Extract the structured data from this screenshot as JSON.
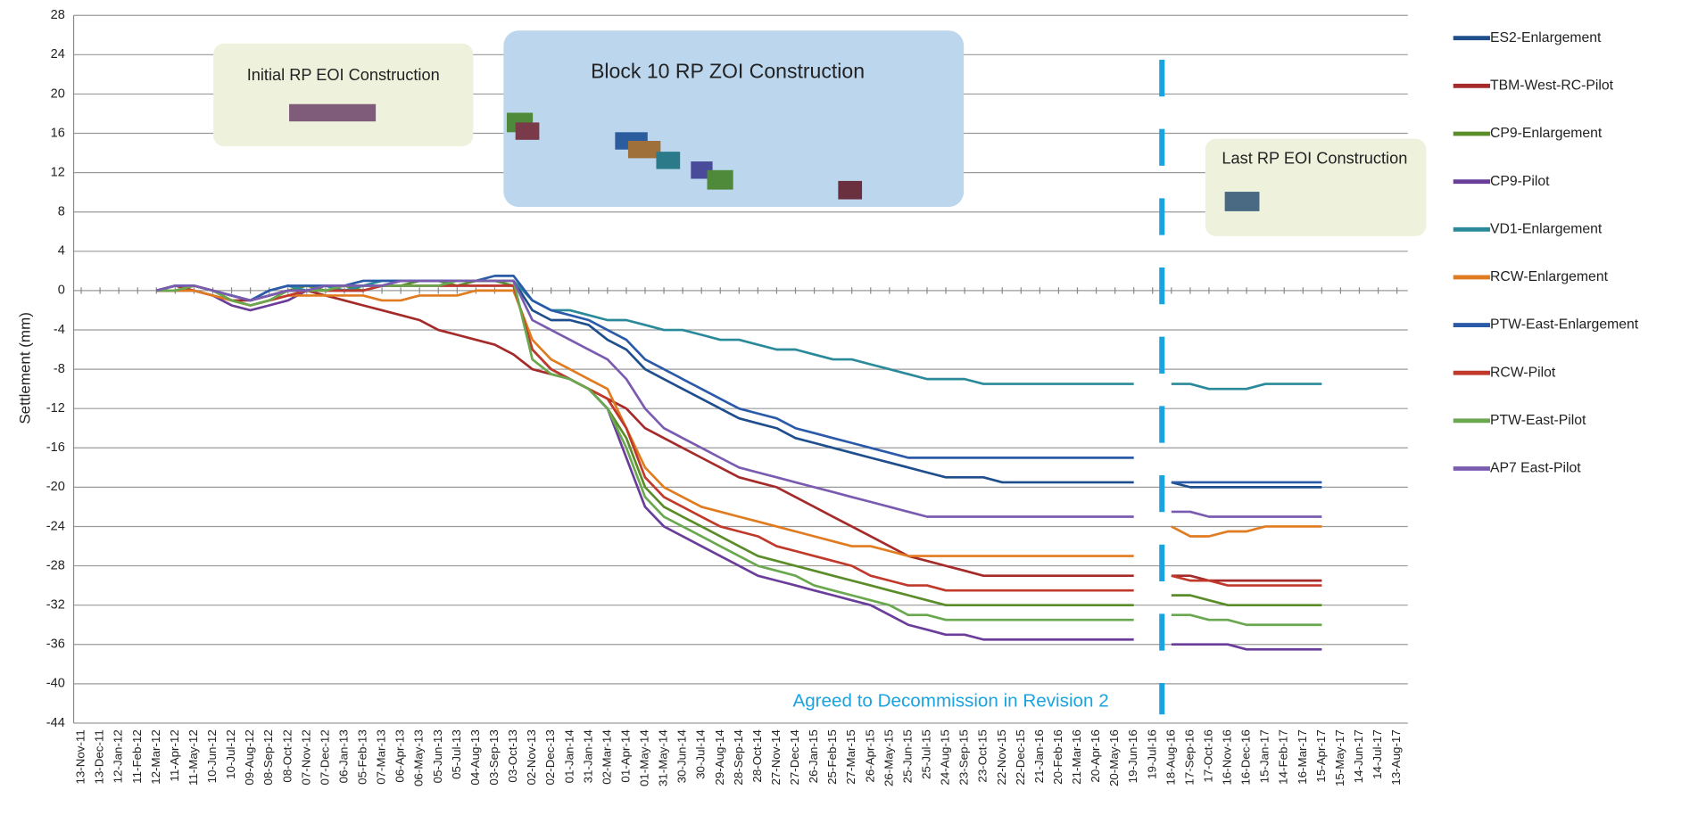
{
  "chart_data": {
    "type": "line",
    "y_label": "Settlement (mm)",
    "ylim": [
      -44,
      28
    ],
    "yticks": [
      -44,
      -40,
      -36,
      -32,
      -28,
      -24,
      -20,
      -16,
      -12,
      -8,
      -4,
      0,
      4,
      8,
      12,
      16,
      20,
      24,
      28
    ],
    "grid": true,
    "legend": "right",
    "annotations": [
      "Initial RP EOI Construction",
      "Block 10 RP ZOI Construction",
      "Last RP EOI Construction",
      "Agreed to Decommission in Revision 2"
    ],
    "categories": [
      "13-Nov-11",
      "13-Dec-11",
      "12-Jan-12",
      "11-Feb-12",
      "12-Mar-12",
      "11-Apr-12",
      "11-May-12",
      "10-Jun-12",
      "10-Jul-12",
      "09-Aug-12",
      "08-Sep-12",
      "08-Oct-12",
      "07-Nov-12",
      "07-Dec-12",
      "06-Jan-13",
      "05-Feb-13",
      "07-Mar-13",
      "06-Apr-13",
      "06-May-13",
      "05-Jun-13",
      "05-Jul-13",
      "04-Aug-13",
      "03-Sep-13",
      "03-Oct-13",
      "02-Nov-13",
      "02-Dec-13",
      "01-Jan-14",
      "31-Jan-14",
      "02-Mar-14",
      "01-Apr-14",
      "01-May-14",
      "31-May-14",
      "30-Jun-14",
      "30-Jul-14",
      "29-Aug-14",
      "28-Sep-14",
      "28-Oct-14",
      "27-Nov-14",
      "27-Dec-14",
      "26-Jan-15",
      "25-Feb-15",
      "27-Mar-15",
      "26-Apr-15",
      "26-May-15",
      "25-Jun-15",
      "25-Jul-15",
      "24-Aug-15",
      "23-Sep-15",
      "23-Oct-15",
      "22-Nov-15",
      "22-Dec-15",
      "21-Jan-16",
      "20-Feb-16",
      "21-Mar-16",
      "20-Apr-16",
      "20-May-16",
      "19-Jun-16",
      "19-Jul-16",
      "18-Aug-16",
      "17-Sep-16",
      "17-Oct-16",
      "16-Nov-16",
      "16-Dec-16",
      "15-Jan-17",
      "14-Feb-17",
      "16-Mar-17",
      "15-Apr-17",
      "15-May-17",
      "14-Jun-17",
      "14-Jul-17",
      "13-Aug-17"
    ],
    "series": [
      {
        "name": "ES2-Enlargement",
        "color": "#1f4e8c",
        "values": [
          null,
          null,
          null,
          null,
          0,
          0.5,
          0.5,
          0,
          -0.5,
          -1,
          -0.5,
          0,
          0,
          0.5,
          0,
          0.5,
          0.5,
          1,
          1,
          1,
          1,
          1,
          1,
          1,
          -2,
          -3,
          -3,
          -3.5,
          -5,
          -6,
          -8,
          -9,
          -10,
          -11,
          -12,
          -13,
          -13.5,
          -14,
          -15,
          -15.5,
          -16,
          -16.5,
          -17,
          -17.5,
          -18,
          -18.5,
          -19,
          -19,
          -19,
          -19.5,
          -19.5,
          -19.5,
          -19.5,
          -19.5,
          -19.5,
          -19.5,
          -19.5,
          null,
          -19.5,
          -20,
          -20,
          -20,
          -20,
          -20,
          -20,
          -20,
          -20,
          null,
          null,
          null,
          null
        ]
      },
      {
        "name": "TBM-West-RC-Pilot",
        "color": "#a52a2a",
        "values": [
          null,
          null,
          null,
          null,
          0,
          0.5,
          0,
          -0.5,
          -1,
          -1,
          -0.5,
          0,
          0,
          -0.5,
          -1,
          -1.5,
          -2,
          -2.5,
          -3,
          -4,
          -4.5,
          -5,
          -5.5,
          -6.5,
          -8,
          -8.5,
          -9,
          -10,
          -11,
          -12,
          -14,
          -15,
          -16,
          -17,
          -18,
          -19,
          -19.5,
          -20,
          -21,
          -22,
          -23,
          -24,
          -25,
          -26,
          -27,
          -27.5,
          -28,
          -28.5,
          -29,
          -29,
          -29,
          -29,
          -29,
          -29,
          -29,
          -29,
          -29,
          null,
          -29,
          -29,
          -29.5,
          -29.5,
          -29.5,
          -29.5,
          -29.5,
          -29.5,
          -29.5,
          null,
          null,
          null,
          null
        ]
      },
      {
        "name": "CP9-Enlargement",
        "color": "#5b8c2a",
        "values": [
          null,
          null,
          null,
          null,
          0,
          0,
          0.5,
          0,
          -1,
          -1.5,
          -1,
          0,
          0.5,
          0,
          0.5,
          0,
          0.5,
          0.5,
          1,
          1,
          0.5,
          1,
          1,
          0.5,
          -6,
          -8,
          -9,
          -10,
          -12,
          -15,
          -20,
          -22,
          -23,
          -24,
          -25,
          -26,
          -27,
          -27.5,
          -28,
          -28.5,
          -29,
          -29.5,
          -30,
          -30.5,
          -31,
          -31.5,
          -32,
          -32,
          -32,
          -32,
          -32,
          -32,
          -32,
          -32,
          -32,
          -32,
          -32,
          null,
          -31,
          -31,
          -31.5,
          -32,
          -32,
          -32,
          -32,
          -32,
          -32,
          null,
          null,
          null,
          null
        ]
      },
      {
        "name": "CP9-Pilot",
        "color": "#6a3d9a",
        "values": [
          null,
          null,
          null,
          null,
          0,
          0,
          0,
          -0.5,
          -1.5,
          -2,
          -1.5,
          -1,
          0,
          0,
          0,
          0,
          0.5,
          0.5,
          0.5,
          0.5,
          0.5,
          0.5,
          0.5,
          0.5,
          -6,
          -8,
          -9,
          -10,
          -12,
          -17,
          -22,
          -24,
          -25,
          -26,
          -27,
          -28,
          -29,
          -29.5,
          -30,
          -30.5,
          -31,
          -31.5,
          -32,
          -33,
          -34,
          -34.5,
          -35,
          -35,
          -35.5,
          -35.5,
          -35.5,
          -35.5,
          -35.5,
          -35.5,
          -35.5,
          -35.5,
          -35.5,
          null,
          -36,
          -36,
          -36,
          -36,
          -36.5,
          -36.5,
          -36.5,
          -36.5,
          -36.5,
          null,
          null,
          null,
          null
        ]
      },
      {
        "name": "VD1-Enlargement",
        "color": "#2a8a9a",
        "values": [
          null,
          null,
          null,
          null,
          0,
          0.5,
          0.5,
          0,
          -0.5,
          -1,
          0,
          0.5,
          0,
          0.5,
          0,
          0.5,
          1,
          1,
          1,
          1,
          1,
          1,
          1,
          1,
          -1,
          -2,
          -2,
          -2.5,
          -3,
          -3,
          -3.5,
          -4,
          -4,
          -4.5,
          -5,
          -5,
          -5.5,
          -6,
          -6,
          -6.5,
          -7,
          -7,
          -7.5,
          -8,
          -8.5,
          -9,
          -9,
          -9,
          -9.5,
          -9.5,
          -9.5,
          -9.5,
          -9.5,
          -9.5,
          -9.5,
          -9.5,
          -9.5,
          null,
          -9.5,
          -9.5,
          -10,
          -10,
          -10,
          -9.5,
          -9.5,
          -9.5,
          -9.5,
          null,
          null,
          null,
          null
        ]
      },
      {
        "name": "RCW-Enlargement",
        "color": "#e07b20",
        "values": [
          null,
          null,
          null,
          null,
          0,
          0,
          0,
          -0.5,
          -1,
          -1.5,
          -1,
          -0.5,
          -0.5,
          -0.5,
          -0.5,
          -0.5,
          -1,
          -1,
          -0.5,
          -0.5,
          -0.5,
          0,
          0,
          0,
          -5,
          -7,
          -8,
          -9,
          -10,
          -14,
          -18,
          -20,
          -21,
          -22,
          -22.5,
          -23,
          -23.5,
          -24,
          -24.5,
          -25,
          -25.5,
          -26,
          -26,
          -26.5,
          -27,
          -27,
          -27,
          -27,
          -27,
          -27,
          -27,
          -27,
          -27,
          -27,
          -27,
          -27,
          -27,
          null,
          -24,
          -25,
          -25,
          -24.5,
          -24.5,
          -24,
          -24,
          -24,
          -24,
          null,
          null,
          null,
          null
        ]
      },
      {
        "name": "PTW-East-Enlargement",
        "color": "#2b5aa8",
        "values": [
          null,
          null,
          null,
          null,
          0,
          0.5,
          0.5,
          0,
          -0.5,
          -1,
          0,
          0.5,
          0.5,
          0.5,
          0.5,
          1,
          1,
          1,
          1,
          1,
          1,
          1,
          1.5,
          1.5,
          -1,
          -2,
          -2.5,
          -3,
          -4,
          -5,
          -7,
          -8,
          -9,
          -10,
          -11,
          -12,
          -12.5,
          -13,
          -14,
          -14.5,
          -15,
          -15.5,
          -16,
          -16.5,
          -17,
          -17,
          -17,
          -17,
          -17,
          -17,
          -17,
          -17,
          -17,
          -17,
          -17,
          -17,
          -17,
          null,
          -19.5,
          -19.5,
          -19.5,
          -19.5,
          -19.5,
          -19.5,
          -19.5,
          -19.5,
          -19.5,
          null,
          null,
          null,
          null
        ]
      },
      {
        "name": "RCW-Pilot",
        "color": "#c0392b",
        "values": [
          null,
          null,
          null,
          null,
          0,
          0,
          0.5,
          0,
          -1,
          -1.5,
          -1,
          -0.5,
          0,
          0,
          0,
          0,
          0.5,
          0.5,
          0.5,
          0.5,
          0.5,
          0.5,
          0.5,
          0.5,
          -6,
          -8,
          -9,
          -10,
          -11,
          -14,
          -19,
          -21,
          -22,
          -23,
          -24,
          -24.5,
          -25,
          -26,
          -26.5,
          -27,
          -27.5,
          -28,
          -29,
          -29.5,
          -30,
          -30,
          -30.5,
          -30.5,
          -30.5,
          -30.5,
          -30.5,
          -30.5,
          -30.5,
          -30.5,
          -30.5,
          -30.5,
          -30.5,
          null,
          -29,
          -29.5,
          -29.5,
          -30,
          -30,
          -30,
          -30,
          -30,
          -30,
          null,
          null,
          null,
          null
        ]
      },
      {
        "name": "PTW-East-Pilot",
        "color": "#6aa84f",
        "values": [
          null,
          null,
          null,
          null,
          0,
          0,
          0.5,
          0,
          -1,
          -1.5,
          -1,
          0,
          0,
          0,
          0.5,
          0.5,
          0.5,
          0.5,
          0.5,
          0.5,
          1,
          1,
          1,
          1,
          -7,
          -8.5,
          -9,
          -10,
          -12,
          -16,
          -21,
          -23,
          -24,
          -25,
          -26,
          -27,
          -28,
          -28.5,
          -29,
          -30,
          -30.5,
          -31,
          -31.5,
          -32,
          -33,
          -33,
          -33.5,
          -33.5,
          -33.5,
          -33.5,
          -33.5,
          -33.5,
          -33.5,
          -33.5,
          -33.5,
          -33.5,
          -33.5,
          null,
          -33,
          -33,
          -33.5,
          -33.5,
          -34,
          -34,
          -34,
          -34,
          -34,
          null,
          null,
          null,
          null
        ]
      },
      {
        "name": "AP7 East-Pilot",
        "color": "#7a5bb0",
        "values": [
          null,
          null,
          null,
          null,
          0,
          0.5,
          0.5,
          0,
          -0.5,
          -1,
          -0.5,
          0,
          0,
          0.5,
          0.5,
          0.5,
          0.5,
          1,
          1,
          1,
          1,
          1,
          1,
          1,
          -3,
          -4,
          -5,
          -6,
          -7,
          -9,
          -12,
          -14,
          -15,
          -16,
          -17,
          -18,
          -18.5,
          -19,
          -19.5,
          -20,
          -20.5,
          -21,
          -21.5,
          -22,
          -22.5,
          -23,
          -23,
          -23,
          -23,
          -23,
          -23,
          -23,
          -23,
          -23,
          -23,
          -23,
          -23,
          null,
          -22.5,
          -22.5,
          -23,
          -23,
          -23,
          -23,
          -23,
          -23,
          -23,
          null,
          null,
          null,
          null
        ]
      }
    ]
  }
}
